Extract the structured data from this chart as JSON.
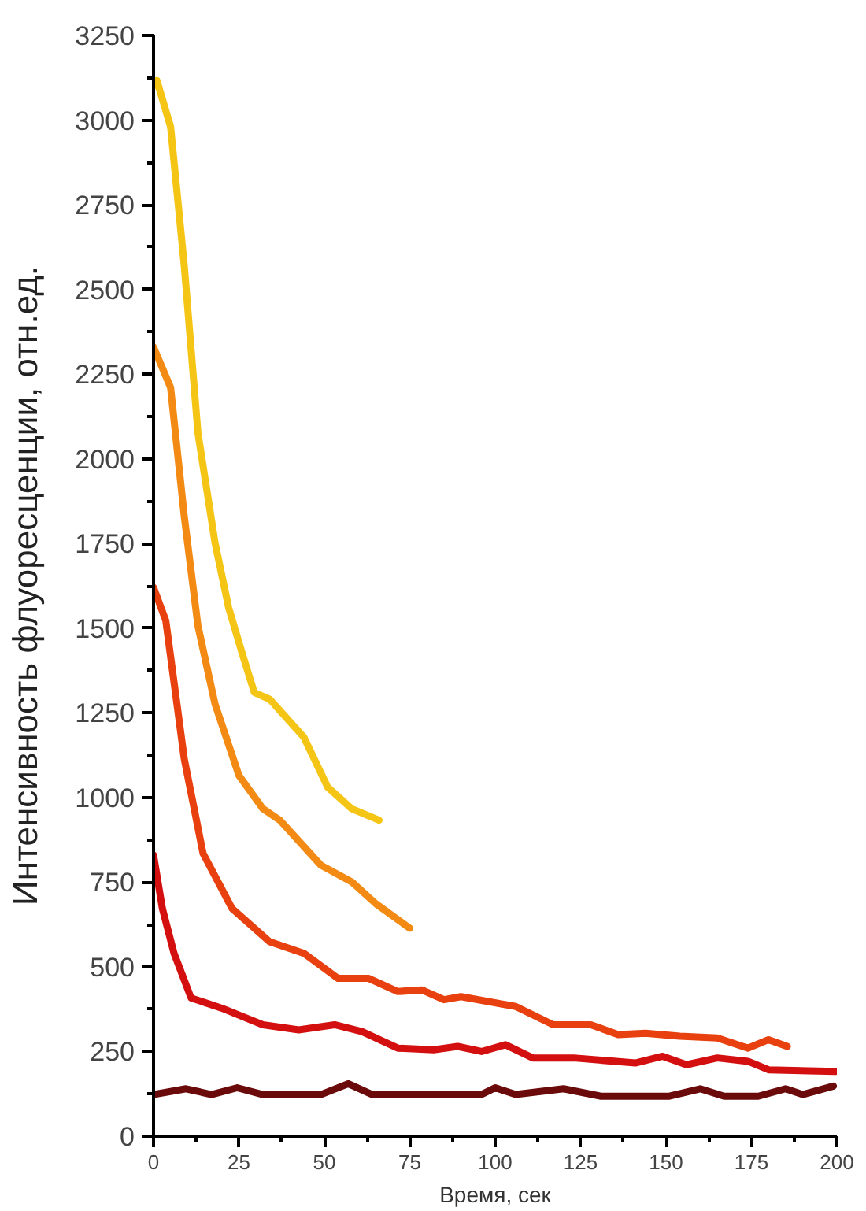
{
  "chart_data": {
    "type": "line",
    "xlabel": "Время, сек",
    "ylabel": "Интенсивность флуоресценции, отн.ед.",
    "xlim": [
      0,
      200
    ],
    "xticks": [
      0,
      25,
      50,
      75,
      100,
      125,
      150,
      175,
      200
    ],
    "ylim": [
      0,
      3250
    ],
    "yticks": [
      0,
      250,
      500,
      750,
      1000,
      1250,
      1500,
      1750,
      2000,
      2250,
      2500,
      2750,
      3000,
      3250
    ],
    "grid": false,
    "marker": "none",
    "line_style": "solid",
    "series": [
      {
        "color": "#6b0a0a",
        "x": [
          0,
          9.5,
          17,
          24.5,
          32,
          49,
          57,
          64,
          96,
          100,
          106,
          120,
          131,
          151,
          160,
          167,
          177,
          185,
          190,
          199
        ],
        "values": [
          123,
          140,
          123,
          143,
          123,
          123,
          155,
          123,
          123,
          143,
          123,
          140,
          118,
          118,
          140,
          118,
          118,
          140,
          123,
          148
        ]
      },
      {
        "color": "#d40f0f",
        "x": [
          0,
          2.6,
          6,
          11,
          20,
          32,
          42.5,
          53,
          61,
          71.5,
          82,
          89,
          96,
          103,
          111,
          123,
          141,
          149,
          156,
          165,
          174,
          180,
          199.5
        ],
        "values": [
          830,
          672,
          540,
          408,
          378,
          329,
          314,
          329,
          309,
          260,
          255,
          265,
          250,
          270,
          231,
          231,
          216,
          236,
          211,
          231,
          221,
          196,
          191
        ]
      },
      {
        "color": "#e8400f",
        "x": [
          0,
          3.6,
          9,
          14.5,
          23,
          34,
          44,
          54,
          63,
          71.5,
          78.5,
          85,
          90,
          106,
          117,
          128,
          136,
          144,
          154,
          165,
          174,
          180,
          185.5
        ],
        "values": [
          1620,
          1522,
          1114,
          835,
          672,
          574,
          540,
          466,
          466,
          427,
          432,
          403,
          412,
          383,
          329,
          329,
          300,
          304,
          295,
          290,
          260,
          285,
          265
        ]
      },
      {
        "color": "#f28a14",
        "x": [
          0,
          5,
          9,
          13,
          18,
          25,
          32,
          37,
          49,
          58,
          65,
          75
        ],
        "values": [
          2330,
          2210,
          1830,
          1507,
          1276,
          1065,
          967,
          933,
          800,
          751,
          687,
          614
        ]
      },
      {
        "color": "#f5c516",
        "x": [
          0,
          1,
          5,
          9,
          13,
          18,
          22,
          26,
          29.5,
          34,
          44,
          51,
          58,
          66
        ],
        "values": [
          3100,
          3117,
          2980,
          2570,
          2077,
          1752,
          1560,
          1424,
          1310,
          1290,
          1178,
          1030,
          967,
          933
        ]
      }
    ]
  }
}
